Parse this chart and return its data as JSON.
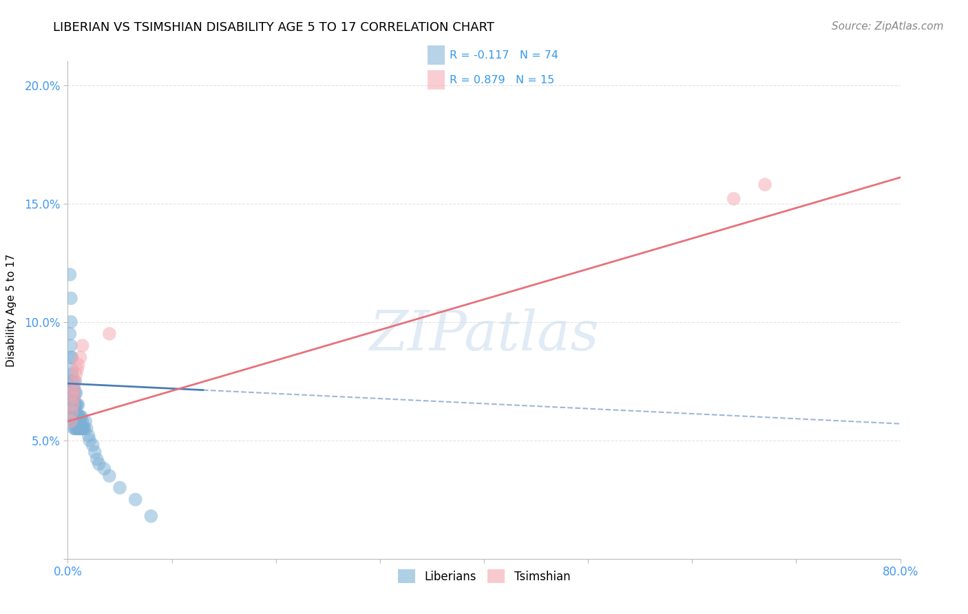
{
  "title": "LIBERIAN VS TSIMSHIAN DISABILITY AGE 5 TO 17 CORRELATION CHART",
  "source": "Source: ZipAtlas.com",
  "ylabel": "Disability Age 5 to 17",
  "xlim": [
    0.0,
    0.8
  ],
  "ylim": [
    0.0,
    0.21
  ],
  "xticks": [
    0.0,
    0.1,
    0.2,
    0.3,
    0.4,
    0.5,
    0.6,
    0.7,
    0.8
  ],
  "xticklabels": [
    "0.0%",
    "",
    "",
    "",
    "",
    "",
    "",
    "",
    "80.0%"
  ],
  "yticks": [
    0.0,
    0.05,
    0.1,
    0.15,
    0.2
  ],
  "yticklabels": [
    "",
    "5.0%",
    "10.0%",
    "15.0%",
    "20.0%"
  ],
  "R_liberian": -0.117,
  "N_liberian": 74,
  "R_tsimshian": 0.879,
  "N_tsimshian": 15,
  "liberian_color": "#7BAFD4",
  "tsimshian_color": "#F4A7B0",
  "liberian_line_color": "#4A7DB5",
  "tsimshian_line_color": "#E8707A",
  "grid_color": "#DDDDDD",
  "watermark": "ZIPatlas",
  "lib_line_x0": 0.0,
  "lib_line_y0": 0.074,
  "lib_line_x1": 0.8,
  "lib_line_y1": 0.057,
  "lib_line_solid_end": 0.13,
  "ts_line_x0": 0.0,
  "ts_line_y0": 0.058,
  "ts_line_x1": 0.8,
  "ts_line_y1": 0.161,
  "liberian_x": [
    0.002,
    0.002,
    0.003,
    0.003,
    0.003,
    0.003,
    0.003,
    0.004,
    0.004,
    0.004,
    0.004,
    0.004,
    0.004,
    0.004,
    0.005,
    0.005,
    0.005,
    0.005,
    0.005,
    0.005,
    0.005,
    0.005,
    0.006,
    0.006,
    0.006,
    0.006,
    0.006,
    0.006,
    0.006,
    0.007,
    0.007,
    0.007,
    0.007,
    0.007,
    0.007,
    0.008,
    0.008,
    0.008,
    0.008,
    0.008,
    0.008,
    0.009,
    0.009,
    0.009,
    0.009,
    0.01,
    0.01,
    0.01,
    0.01,
    0.011,
    0.011,
    0.011,
    0.012,
    0.012,
    0.012,
    0.013,
    0.013,
    0.014,
    0.014,
    0.015,
    0.016,
    0.017,
    0.018,
    0.02,
    0.021,
    0.024,
    0.026,
    0.028,
    0.03,
    0.035,
    0.04,
    0.05,
    0.065,
    0.08
  ],
  "liberian_y": [
    0.095,
    0.12,
    0.085,
    0.1,
    0.09,
    0.075,
    0.11,
    0.07,
    0.08,
    0.065,
    0.072,
    0.068,
    0.078,
    0.085,
    0.065,
    0.06,
    0.07,
    0.062,
    0.068,
    0.075,
    0.058,
    0.072,
    0.055,
    0.065,
    0.06,
    0.068,
    0.072,
    0.062,
    0.058,
    0.055,
    0.06,
    0.065,
    0.07,
    0.058,
    0.075,
    0.062,
    0.055,
    0.06,
    0.065,
    0.058,
    0.07,
    0.055,
    0.06,
    0.065,
    0.058,
    0.055,
    0.06,
    0.065,
    0.058,
    0.055,
    0.06,
    0.058,
    0.055,
    0.06,
    0.058,
    0.055,
    0.06,
    0.055,
    0.058,
    0.055,
    0.055,
    0.058,
    0.055,
    0.052,
    0.05,
    0.048,
    0.045,
    0.042,
    0.04,
    0.038,
    0.035,
    0.03,
    0.025,
    0.018
  ],
  "tsimshian_x": [
    0.003,
    0.004,
    0.005,
    0.005,
    0.006,
    0.006,
    0.007,
    0.008,
    0.009,
    0.01,
    0.012,
    0.014,
    0.04,
    0.64,
    0.67
  ],
  "tsimshian_y": [
    0.058,
    0.062,
    0.065,
    0.07,
    0.068,
    0.072,
    0.075,
    0.078,
    0.08,
    0.082,
    0.085,
    0.09,
    0.095,
    0.152,
    0.158
  ]
}
